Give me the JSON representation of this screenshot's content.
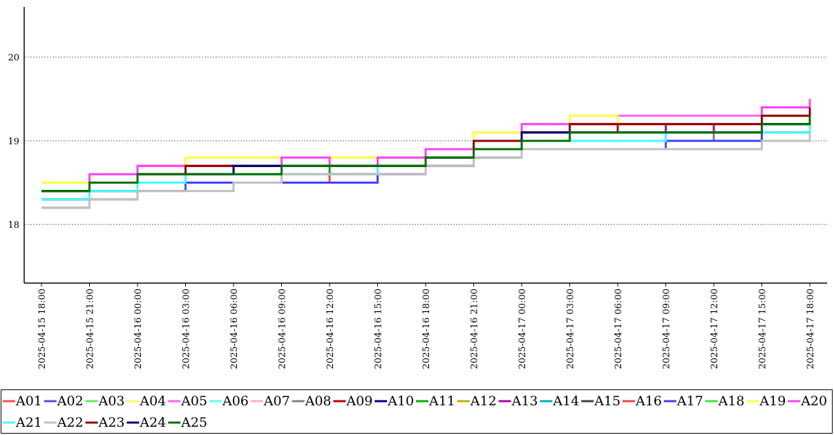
{
  "chart_data": {
    "type": "line",
    "step": true,
    "x": [
      "2025-04-15 18:00",
      "2025-04-15 21:00",
      "2025-04-16 00:00",
      "2025-04-16 03:00",
      "2025-04-16 06:00",
      "2025-04-16 09:00",
      "2025-04-16 12:00",
      "2025-04-16 15:00",
      "2025-04-16 18:00",
      "2025-04-16 21:00",
      "2025-04-17 00:00",
      "2025-04-17 03:00",
      "2025-04-17 06:00",
      "2025-04-17 09:00",
      "2025-04-17 12:00",
      "2025-04-17 15:00",
      "2025-04-17 18:00"
    ],
    "ylim": [
      17.3,
      20.6
    ],
    "yticks": [
      18,
      19,
      20
    ],
    "grid": true,
    "series": [
      {
        "name": "A01",
        "color": "#ff5050",
        "values": [
          18.3,
          18.4,
          18.5,
          18.5,
          18.5,
          18.5,
          18.6,
          18.6,
          18.7,
          18.9,
          19.0,
          19.1,
          19.1,
          19.1,
          19.1,
          19.2,
          19.3
        ]
      },
      {
        "name": "A02",
        "color": "#5050e0",
        "values": [
          18.2,
          18.3,
          18.4,
          18.5,
          18.5,
          18.5,
          18.5,
          18.6,
          18.7,
          18.8,
          18.9,
          18.9,
          18.9,
          19.0,
          19.0,
          19.1,
          19.2
        ]
      },
      {
        "name": "A03",
        "color": "#60f060",
        "values": [
          18.4,
          18.5,
          18.6,
          18.6,
          18.7,
          18.7,
          18.7,
          18.7,
          18.8,
          18.9,
          19.0,
          19.1,
          19.1,
          19.1,
          19.1,
          19.2,
          19.3
        ]
      },
      {
        "name": "A04",
        "color": "#ffff60",
        "values": [
          18.5,
          18.6,
          18.7,
          18.8,
          18.8,
          18.8,
          18.8,
          18.8,
          18.9,
          19.0,
          19.2,
          19.2,
          19.2,
          19.2,
          19.2,
          19.3,
          19.5
        ]
      },
      {
        "name": "A05",
        "color": "#ff60ff",
        "values": [
          18.4,
          18.6,
          18.7,
          18.7,
          18.7,
          18.8,
          18.7,
          18.8,
          18.9,
          19.1,
          19.2,
          19.3,
          19.3,
          19.3,
          19.3,
          19.4,
          19.5
        ]
      },
      {
        "name": "A06",
        "color": "#60ffff",
        "values": [
          18.3,
          18.4,
          18.5,
          18.6,
          18.6,
          18.6,
          18.6,
          18.7,
          18.8,
          18.9,
          19.0,
          19.1,
          19.1,
          19.1,
          19.1,
          19.2,
          19.2
        ]
      },
      {
        "name": "A07",
        "color": "#ffb0b0",
        "values": [
          18.4,
          18.5,
          18.6,
          18.7,
          18.7,
          18.7,
          18.7,
          18.7,
          18.8,
          18.9,
          19.1,
          19.1,
          19.1,
          19.1,
          19.2,
          19.2,
          19.4
        ]
      },
      {
        "name": "A08",
        "color": "#808080",
        "values": [
          18.3,
          18.4,
          18.5,
          18.6,
          18.6,
          18.6,
          18.6,
          18.7,
          18.7,
          18.8,
          19.0,
          19.0,
          19.0,
          19.0,
          19.1,
          19.1,
          19.2
        ]
      },
      {
        "name": "A09",
        "color": "#c00000",
        "values": [
          18.4,
          18.5,
          18.7,
          18.7,
          18.7,
          18.7,
          18.7,
          18.8,
          18.9,
          19.0,
          19.1,
          19.2,
          19.1,
          19.2,
          19.2,
          19.3,
          19.4
        ]
      },
      {
        "name": "A10",
        "color": "#000090",
        "values": [
          18.4,
          18.5,
          18.6,
          18.6,
          18.7,
          18.7,
          18.6,
          18.7,
          18.8,
          18.9,
          19.1,
          19.1,
          19.1,
          19.1,
          19.1,
          19.2,
          19.3
        ]
      },
      {
        "name": "A11",
        "color": "#00b000",
        "values": [
          18.4,
          18.5,
          18.6,
          18.6,
          18.6,
          18.7,
          18.6,
          18.7,
          18.8,
          18.9,
          19.0,
          19.1,
          19.1,
          19.1,
          19.1,
          19.2,
          19.3
        ]
      },
      {
        "name": "A12",
        "color": "#c0b000",
        "values": [
          18.4,
          18.5,
          18.6,
          18.7,
          18.7,
          18.7,
          18.7,
          18.7,
          18.8,
          19.0,
          19.1,
          19.2,
          19.2,
          19.2,
          19.2,
          19.3,
          19.4
        ]
      },
      {
        "name": "A13",
        "color": "#b000b0",
        "values": [
          18.4,
          18.5,
          18.6,
          18.6,
          18.7,
          18.7,
          18.7,
          18.7,
          18.9,
          19.0,
          19.1,
          19.1,
          19.1,
          19.2,
          19.1,
          19.2,
          19.3
        ]
      },
      {
        "name": "A14",
        "color": "#00b0b0",
        "values": [
          18.3,
          18.4,
          18.5,
          18.6,
          18.6,
          18.6,
          18.6,
          18.7,
          18.8,
          18.9,
          19.0,
          19.1,
          19.1,
          19.1,
          19.1,
          19.1,
          19.2
        ]
      },
      {
        "name": "A15",
        "color": "#404040",
        "values": [
          18.4,
          18.5,
          18.6,
          18.6,
          18.7,
          18.7,
          18.7,
          18.7,
          18.8,
          18.9,
          19.1,
          19.1,
          19.1,
          19.1,
          19.1,
          19.2,
          19.3
        ]
      },
      {
        "name": "A16",
        "color": "#ff4040",
        "values": [
          18.3,
          18.4,
          18.5,
          18.5,
          18.5,
          18.5,
          18.6,
          18.6,
          18.7,
          18.9,
          19.0,
          19.0,
          19.0,
          19.1,
          19.1,
          19.2,
          19.3
        ]
      },
      {
        "name": "A17",
        "color": "#4040ff",
        "values": [
          18.3,
          18.4,
          18.5,
          18.5,
          18.5,
          18.5,
          18.5,
          18.6,
          18.7,
          18.8,
          19.0,
          19.0,
          19.0,
          19.0,
          19.0,
          19.1,
          19.2
        ]
      },
      {
        "name": "A18",
        "color": "#40e040",
        "values": [
          18.4,
          18.5,
          18.6,
          18.6,
          18.6,
          18.7,
          18.7,
          18.7,
          18.8,
          18.9,
          19.0,
          19.1,
          19.1,
          19.1,
          19.1,
          19.2,
          19.3
        ]
      },
      {
        "name": "A19",
        "color": "#ffff40",
        "values": [
          18.5,
          18.6,
          18.7,
          18.8,
          18.8,
          18.8,
          18.8,
          18.8,
          18.9,
          19.1,
          19.2,
          19.3,
          19.2,
          19.2,
          19.2,
          19.3,
          19.5
        ]
      },
      {
        "name": "A20",
        "color": "#ff40ff",
        "values": [
          18.4,
          18.6,
          18.7,
          18.7,
          18.7,
          18.8,
          18.7,
          18.8,
          18.9,
          19.0,
          19.2,
          19.2,
          19.2,
          19.2,
          19.2,
          19.4,
          19.5
        ]
      },
      {
        "name": "A21",
        "color": "#40ffff",
        "values": [
          18.3,
          18.4,
          18.5,
          18.6,
          18.6,
          18.6,
          18.6,
          18.7,
          18.8,
          18.9,
          19.0,
          19.0,
          19.0,
          19.1,
          19.1,
          19.1,
          19.2
        ]
      },
      {
        "name": "A22",
        "color": "#c0c0c0",
        "values": [
          18.2,
          18.3,
          18.4,
          18.4,
          18.5,
          18.6,
          18.6,
          18.6,
          18.7,
          18.8,
          18.9,
          18.9,
          18.9,
          18.9,
          18.9,
          19.0,
          19.1
        ]
      },
      {
        "name": "A23",
        "color": "#900000",
        "values": [
          18.4,
          18.5,
          18.6,
          18.7,
          18.7,
          18.7,
          18.7,
          18.7,
          18.8,
          19.0,
          19.1,
          19.2,
          19.2,
          19.2,
          19.2,
          19.3,
          19.4
        ]
      },
      {
        "name": "A24",
        "color": "#000070",
        "values": [
          18.4,
          18.5,
          18.6,
          18.6,
          18.7,
          18.7,
          18.7,
          18.7,
          18.8,
          18.9,
          19.1,
          19.1,
          19.1,
          19.1,
          19.1,
          19.2,
          19.3
        ]
      },
      {
        "name": "A25",
        "color": "#007000",
        "values": [
          18.4,
          18.5,
          18.6,
          18.6,
          18.6,
          18.7,
          18.7,
          18.7,
          18.8,
          18.9,
          19.0,
          19.1,
          19.1,
          19.1,
          19.1,
          19.2,
          19.3
        ]
      }
    ]
  }
}
